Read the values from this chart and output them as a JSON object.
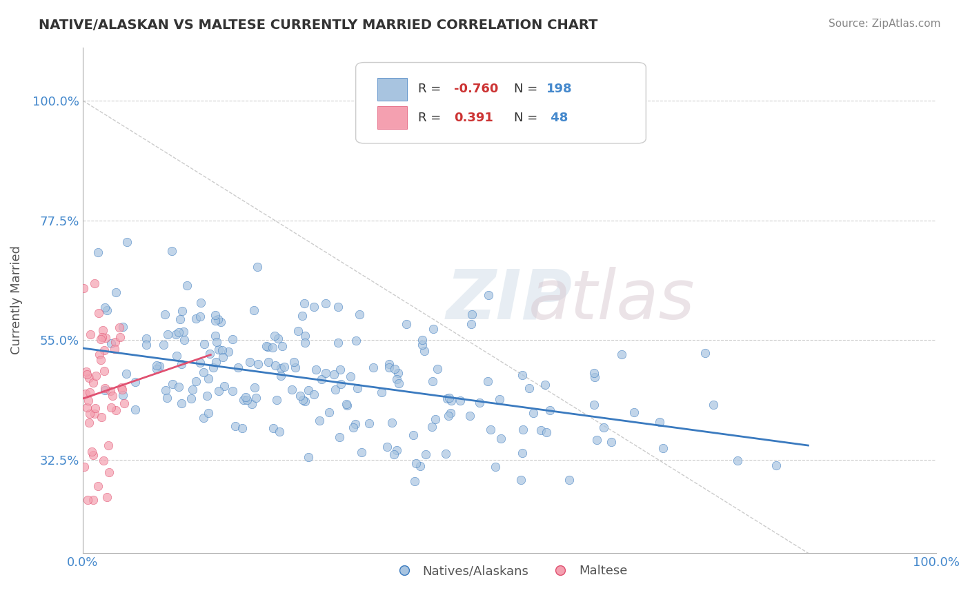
{
  "title": "NATIVE/ALASKAN VS MALTESE CURRENTLY MARRIED CORRELATION CHART",
  "source": "Source: ZipAtlas.com",
  "xlabel": "",
  "ylabel": "Currently Married",
  "xlim": [
    0.0,
    1.0
  ],
  "ylim": [
    0.15,
    1.1
  ],
  "x_ticks": [
    0.0,
    1.0
  ],
  "x_tick_labels": [
    "0.0%",
    "100.0%"
  ],
  "y_ticks": [
    0.325,
    0.55,
    0.775,
    1.0
  ],
  "y_tick_labels": [
    "32.5%",
    "55.0%",
    "77.5%",
    "100.0%"
  ],
  "blue_color": "#a8c4e0",
  "blue_line_color": "#3a7abf",
  "pink_color": "#f4a0b0",
  "pink_line_color": "#e05070",
  "watermark": "ZIPatlas",
  "legend_r1": "R = -0.760",
  "legend_n1": "N = 198",
  "legend_r2": "R =  0.391",
  "legend_n2": "N =  48",
  "blue_R": -0.76,
  "blue_N": 198,
  "pink_R": 0.391,
  "pink_N": 48,
  "blue_intercept": 0.535,
  "blue_slope": -0.215,
  "pink_intercept": 0.44,
  "pink_slope": 0.55,
  "grid_color": "#cccccc",
  "background_color": "#ffffff",
  "title_color": "#333333",
  "axis_label_color": "#555555",
  "tick_label_color": "#4488cc",
  "legend_r_color": "#cc3333",
  "legend_n_color": "#4488cc"
}
